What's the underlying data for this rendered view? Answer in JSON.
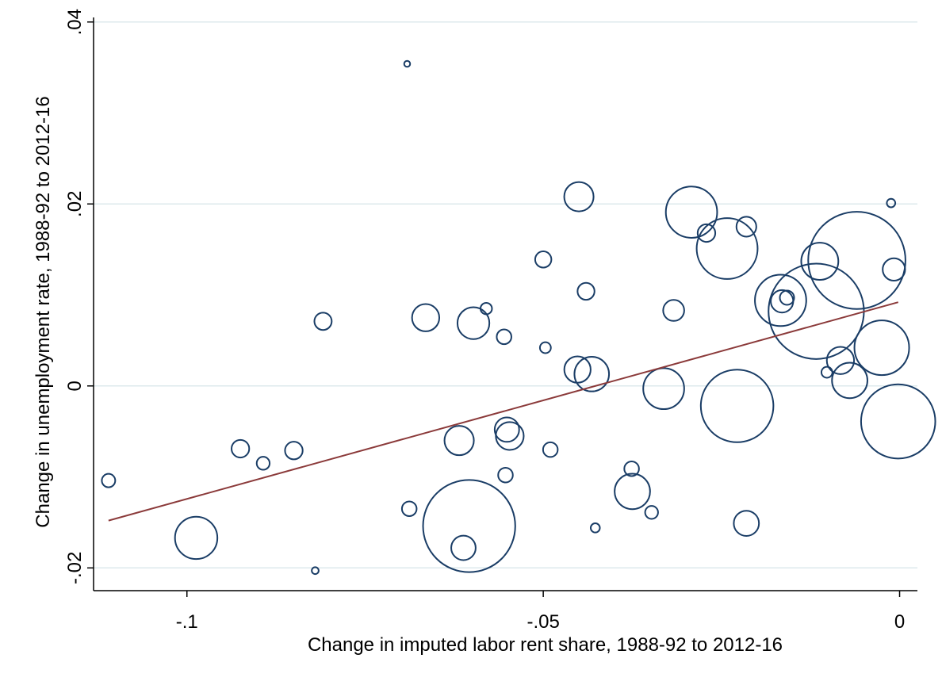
{
  "chart_data": {
    "type": "scatter",
    "title": "",
    "xlabel": "Change in imputed labor rent share, 1988-92 to 2012-16",
    "ylabel": "Change in unemployment rate,  1988-92 to 2012-16",
    "xlim": [
      -0.1131,
      0.0025
    ],
    "ylim": [
      -0.0225,
      0.0405
    ],
    "x_ticks": [
      -0.1,
      -0.05,
      0
    ],
    "x_tick_labels": [
      "-.1",
      "-.05",
      "0"
    ],
    "y_ticks": [
      -0.02,
      0,
      0.02,
      0.04
    ],
    "y_tick_labels": [
      "-.02",
      "0",
      ".02",
      ".04"
    ],
    "grid": "horizontal",
    "legend": "none",
    "colors": {
      "markers": "#1a3d66",
      "fit_line": "#8b3a3a",
      "grid": "#dde9ec"
    },
    "marker_note": "hollow circles sized by weight",
    "points": [
      {
        "x": -0.111,
        "y": -0.0104,
        "w": 1.5
      },
      {
        "x": -0.0987,
        "y": -0.0167,
        "w": 15
      },
      {
        "x": -0.0925,
        "y": -0.0069,
        "w": 2.6
      },
      {
        "x": -0.0893,
        "y": -0.0085,
        "w": 1.4
      },
      {
        "x": -0.085,
        "y": -0.0071,
        "w": 2.6
      },
      {
        "x": -0.082,
        "y": -0.0203,
        "w": 0.4
      },
      {
        "x": -0.0809,
        "y": 0.0071,
        "w": 2.5
      },
      {
        "x": -0.0691,
        "y": 0.0354,
        "w": 0.3
      },
      {
        "x": -0.0688,
        "y": -0.0135,
        "w": 1.8
      },
      {
        "x": -0.0665,
        "y": 0.0075,
        "w": 6.2
      },
      {
        "x": -0.0618,
        "y": -0.006,
        "w": 7.2
      },
      {
        "x": -0.0612,
        "y": -0.0178,
        "w": 5
      },
      {
        "x": -0.0604,
        "y": -0.0154,
        "w": 71
      },
      {
        "x": -0.0598,
        "y": 0.0069,
        "w": 8.5
      },
      {
        "x": -0.058,
        "y": 0.0085,
        "w": 1.1
      },
      {
        "x": -0.0555,
        "y": 0.0054,
        "w": 1.8
      },
      {
        "x": -0.0551,
        "y": -0.0048,
        "w": 5
      },
      {
        "x": -0.0547,
        "y": -0.0055,
        "w": 6.5
      },
      {
        "x": -0.0553,
        "y": -0.0098,
        "w": 1.8
      },
      {
        "x": -0.05,
        "y": 0.0139,
        "w": 2.2
      },
      {
        "x": -0.0497,
        "y": 0.0042,
        "w": 1
      },
      {
        "x": -0.049,
        "y": -0.007,
        "w": 1.8
      },
      {
        "x": -0.0452,
        "y": 0.0018,
        "w": 5.8
      },
      {
        "x": -0.045,
        "y": 0.0208,
        "w": 7.2
      },
      {
        "x": -0.044,
        "y": 0.0104,
        "w": 2.4
      },
      {
        "x": -0.0432,
        "y": 0.0013,
        "w": 10
      },
      {
        "x": -0.0427,
        "y": -0.0156,
        "w": 0.7
      },
      {
        "x": -0.0376,
        "y": -0.0091,
        "w": 1.8
      },
      {
        "x": -0.0375,
        "y": -0.0116,
        "w": 10.5
      },
      {
        "x": -0.0348,
        "y": -0.0139,
        "w": 1.4
      },
      {
        "x": -0.0331,
        "y": -0.0003,
        "w": 14
      },
      {
        "x": -0.0317,
        "y": 0.0083,
        "w": 3.7
      },
      {
        "x": -0.0292,
        "y": 0.0191,
        "w": 22
      },
      {
        "x": -0.0271,
        "y": 0.0168,
        "w": 2.6
      },
      {
        "x": -0.0242,
        "y": 0.0151,
        "w": 31
      },
      {
        "x": -0.0228,
        "y": -0.0022,
        "w": 44
      },
      {
        "x": -0.0215,
        "y": 0.0175,
        "w": 3.3
      },
      {
        "x": -0.0215,
        "y": -0.0151,
        "w": 5.3
      },
      {
        "x": -0.0167,
        "y": 0.0094,
        "w": 22
      },
      {
        "x": -0.0165,
        "y": 0.0093,
        "w": 4.2
      },
      {
        "x": -0.0158,
        "y": 0.0097,
        "w": 1.7
      },
      {
        "x": -0.0117,
        "y": 0.0082,
        "w": 76
      },
      {
        "x": -0.0112,
        "y": 0.0137,
        "w": 11.5
      },
      {
        "x": -0.0102,
        "y": 0.0015,
        "w": 1
      },
      {
        "x": -0.0083,
        "y": 0.0028,
        "w": 6.2
      },
      {
        "x": -0.007,
        "y": 0.0006,
        "w": 10.5
      },
      {
        "x": -0.006,
        "y": 0.0138,
        "w": 79
      },
      {
        "x": -0.0025,
        "y": 0.0042,
        "w": 25
      },
      {
        "x": -0.0012,
        "y": 0.0201,
        "w": 0.6
      },
      {
        "x": -0.0008,
        "y": 0.0128,
        "w": 4.2
      },
      {
        "x": -0.0002,
        "y": -0.0039,
        "w": 46
      }
    ],
    "fit_line": {
      "x": [
        -0.111,
        -0.0002
      ],
      "y": [
        -0.0148,
        0.0092
      ]
    }
  }
}
